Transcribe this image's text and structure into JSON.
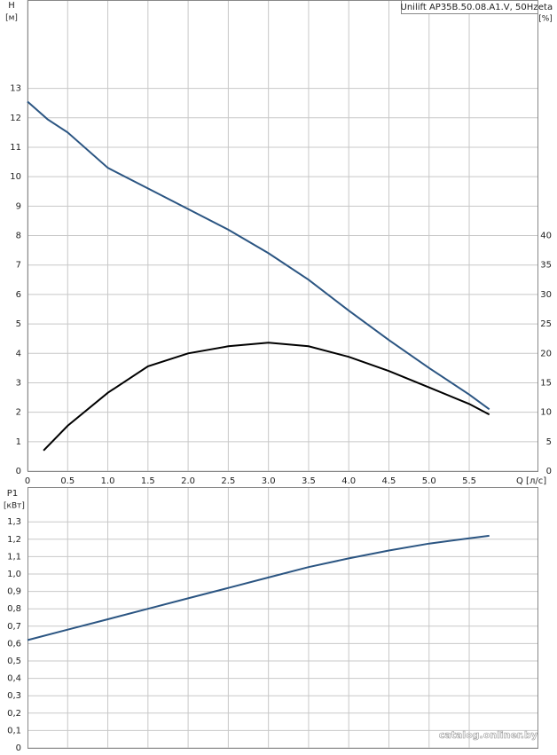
{
  "chart_data": [
    {
      "type": "line",
      "title": "Unilift AP35B.50.08.A1.V, 50Hz",
      "ylabel": "H",
      "yunit": "[м]",
      "y2label": "eta",
      "y2unit": "[%]",
      "xlabel": "Q [л/с]",
      "x": [
        0,
        0.25,
        0.5,
        1,
        1.5,
        2,
        2.5,
        3,
        3.5,
        4,
        4.5,
        5,
        5.5,
        5.75
      ],
      "series": [
        {
          "name": "H",
          "color": "#2b5582",
          "values": [
            12.55,
            11.95,
            11.5,
            10.3,
            9.6,
            8.9,
            8.2,
            7.4,
            6.5,
            5.45,
            4.45,
            3.5,
            2.6,
            2.1
          ]
        },
        {
          "name": "eta",
          "color": "#000000",
          "axis": "y2",
          "x": [
            0.2,
            0.5,
            1,
            1.5,
            2,
            2.5,
            3,
            3.5,
            4,
            4.5,
            5,
            5.5,
            5.75
          ],
          "values": [
            3.5,
            7.7,
            13.3,
            17.8,
            20,
            21.2,
            21.8,
            21.2,
            19.4,
            17,
            14.2,
            11.4,
            9.6
          ]
        }
      ],
      "xlim": [
        0,
        6.35
      ],
      "ylim": [
        0,
        16
      ],
      "y2lim": [
        0,
        80
      ],
      "xticks": [
        0,
        0.5,
        {
          "value": 1,
          "label": "1.0"
        },
        1.5,
        {
          "value": 2,
          "label": "2.0"
        },
        2.5,
        {
          "value": 3,
          "label": "3.0"
        },
        3.5,
        {
          "value": 4,
          "label": "4.0"
        },
        4.5,
        {
          "value": 5,
          "label": "5.0"
        },
        5.5
      ],
      "yticks": [
        0,
        1,
        2,
        3,
        4,
        5,
        6,
        7,
        8,
        9,
        10,
        11,
        12,
        13
      ],
      "y2ticks": [
        0,
        5,
        10,
        15,
        20,
        25,
        30,
        35,
        40
      ],
      "grid": true
    },
    {
      "type": "line",
      "ylabel": "P1",
      "yunit": "[кВт]",
      "x": [
        0,
        0.5,
        1,
        1.5,
        2,
        2.5,
        3,
        3.5,
        4,
        4.5,
        5,
        5.5,
        5.75
      ],
      "series": [
        {
          "name": "P1",
          "color": "#2b5582",
          "values": [
            0.62,
            0.68,
            0.74,
            0.8,
            0.86,
            0.92,
            0.98,
            1.04,
            1.09,
            1.135,
            1.175,
            1.205,
            1.22
          ]
        }
      ],
      "xlim": [
        0,
        6.35
      ],
      "ylim": [
        0,
        1.5
      ],
      "xticks": [
        0.5,
        1,
        1.5,
        2,
        2.5,
        3,
        3.5,
        4,
        4.5,
        5,
        5.5
      ],
      "yticks": [
        0,
        {
          "value": 0.1,
          "label": "0,1"
        },
        {
          "value": 0.2,
          "label": "0,2"
        },
        {
          "value": 0.3,
          "label": "0,3"
        },
        {
          "value": 0.4,
          "label": "0,4"
        },
        {
          "value": 0.5,
          "label": "0,5"
        },
        {
          "value": 0.6,
          "label": "0,6"
        },
        {
          "value": 0.7,
          "label": "0,7"
        },
        {
          "value": 0.8,
          "label": "0,8"
        },
        {
          "value": 0.9,
          "label": "0,9"
        },
        {
          "value": 1,
          "label": "1,0"
        },
        {
          "value": 1.1,
          "label": "1,1"
        },
        {
          "value": 1.2,
          "label": "1,2"
        },
        {
          "value": 1.3,
          "label": "1,3"
        }
      ],
      "grid": true
    }
  ],
  "watermark": "catalog.onliner.by"
}
